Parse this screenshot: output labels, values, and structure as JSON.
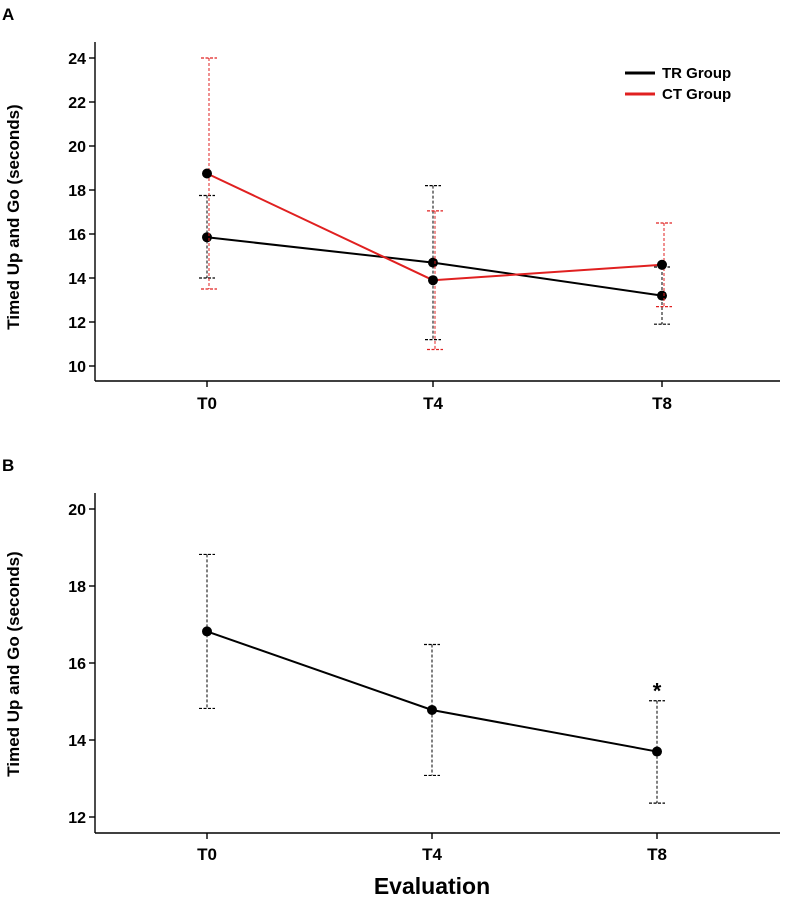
{
  "chart_data": [
    {
      "panel": "A",
      "type": "line",
      "categories": [
        "T0",
        "T4",
        "T8"
      ],
      "ylabel": "Timed Up and Go (seconds)",
      "xlabel": "",
      "ylim": [
        10,
        24
      ],
      "yticks": [
        10,
        12,
        14,
        16,
        18,
        20,
        22,
        24
      ],
      "grid": false,
      "legend_position": "top-right",
      "series": [
        {
          "name": "TR Group",
          "color": "#000000",
          "values": [
            15.85,
            14.7,
            13.2
          ],
          "error_low": [
            14.0,
            11.2,
            11.9
          ],
          "error_high": [
            17.75,
            18.2,
            14.5
          ]
        },
        {
          "name": "CT Group",
          "color": "#e02020",
          "values": [
            18.75,
            13.9,
            14.6
          ],
          "error_low": [
            13.5,
            10.75,
            12.7
          ],
          "error_high": [
            24.0,
            17.05,
            16.5
          ]
        }
      ]
    },
    {
      "panel": "B",
      "type": "line",
      "categories": [
        "T0",
        "T4",
        "T8"
      ],
      "ylabel": "Timed Up and Go (seconds)",
      "xlabel": "Evaluation",
      "ylim": [
        12,
        20
      ],
      "yticks": [
        12,
        14,
        16,
        18,
        20
      ],
      "grid": false,
      "series": [
        {
          "color": "#000000",
          "values": [
            16.82,
            14.78,
            13.7
          ],
          "error_low": [
            14.82,
            13.08,
            12.36
          ],
          "error_high": [
            18.82,
            16.48,
            15.02
          ]
        }
      ],
      "annotations": [
        {
          "text": "*",
          "category": "T8"
        }
      ]
    }
  ]
}
